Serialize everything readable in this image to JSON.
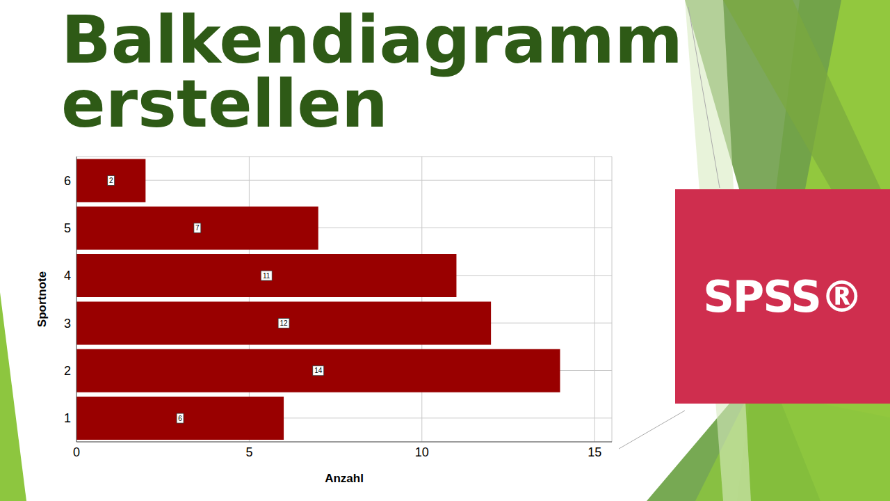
{
  "chart_data": {
    "type": "bar",
    "title": "Balkendiagramm erstellen",
    "orientation": "horizontal",
    "categories": [
      "1",
      "2",
      "3",
      "4",
      "5",
      "6"
    ],
    "values": [
      6,
      14,
      12,
      11,
      7,
      2
    ],
    "color": "#990000",
    "xlabel": "Anzahl",
    "ylabel": "Sportnote",
    "xlim": [
      0,
      15.5
    ],
    "xticks": [
      0,
      5,
      10,
      15
    ],
    "grid": true,
    "data_labels": true,
    "annotations": [
      "SPSS®"
    ]
  }
}
